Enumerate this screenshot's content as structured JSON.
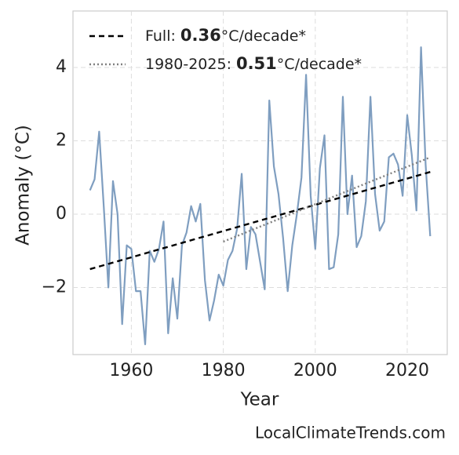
{
  "chart_data": {
    "type": "line",
    "x_label": "Year",
    "y_label": "Anomaly (°C)",
    "footer": "LocalClimateTrends.com",
    "x": [
      1951,
      1952,
      1953,
      1954,
      1955,
      1956,
      1957,
      1958,
      1959,
      1960,
      1961,
      1962,
      1963,
      1964,
      1965,
      1966,
      1967,
      1968,
      1969,
      1970,
      1971,
      1972,
      1973,
      1974,
      1975,
      1976,
      1977,
      1978,
      1979,
      1980,
      1981,
      1982,
      1983,
      1984,
      1985,
      1986,
      1987,
      1988,
      1989,
      1990,
      1991,
      1992,
      1993,
      1994,
      1995,
      1996,
      1997,
      1998,
      1999,
      2000,
      2001,
      2002,
      2003,
      2004,
      2005,
      2006,
      2007,
      2008,
      2009,
      2010,
      2011,
      2012,
      2013,
      2014,
      2015,
      2016,
      2017,
      2018,
      2019,
      2020,
      2021,
      2022,
      2023,
      2024,
      2025
    ],
    "series": [
      {
        "color": "#7f9ec0",
        "values": [
          0.65,
          0.95,
          2.25,
          0.2,
          -2.0,
          0.9,
          0.0,
          -3.0,
          -0.85,
          -0.95,
          -2.1,
          -2.1,
          -3.55,
          -1.0,
          -1.3,
          -0.95,
          -0.2,
          -3.25,
          -1.75,
          -2.85,
          -0.85,
          -0.5,
          0.22,
          -0.2,
          0.28,
          -1.8,
          -2.9,
          -2.35,
          -1.65,
          -1.95,
          -1.25,
          -1.0,
          -0.4,
          1.1,
          -1.5,
          -0.35,
          -0.55,
          -1.3,
          -2.05,
          3.1,
          1.3,
          0.55,
          -0.65,
          -2.1,
          -0.85,
          0.0,
          1.0,
          3.8,
          0.5,
          -0.95,
          1.25,
          2.15,
          -1.5,
          -1.45,
          -0.55,
          3.2,
          0.0,
          1.05,
          -0.9,
          -0.6,
          0.35,
          3.2,
          0.55,
          -0.45,
          -0.2,
          1.55,
          1.65,
          1.35,
          0.5,
          2.7,
          1.6,
          0.1,
          4.55,
          1.35,
          -0.6
        ]
      },
      {
        "name": "Full:",
        "slope": 0.36,
        "unit": "°C/decade*",
        "color": "#000000",
        "dash": "7 5",
        "x": [
          1951,
          2025
        ],
        "values": [
          -1.5,
          1.15
        ]
      },
      {
        "name": "1980-2025:",
        "slope": 0.51,
        "unit": "°C/decade*",
        "color": "#808080",
        "dash": "2 3",
        "x": [
          1980,
          2025
        ],
        "values": [
          -0.75,
          1.55
        ]
      }
    ],
    "xlim": [
      1947.3,
      2028.7
    ],
    "ylim": [
      -3.83,
      5.54
    ],
    "xticks": [
      1960,
      1980,
      2000,
      2020
    ],
    "yticks": [
      {
        "value": -2,
        "label": "−2"
      },
      0,
      2,
      4
    ],
    "grid": true
  }
}
